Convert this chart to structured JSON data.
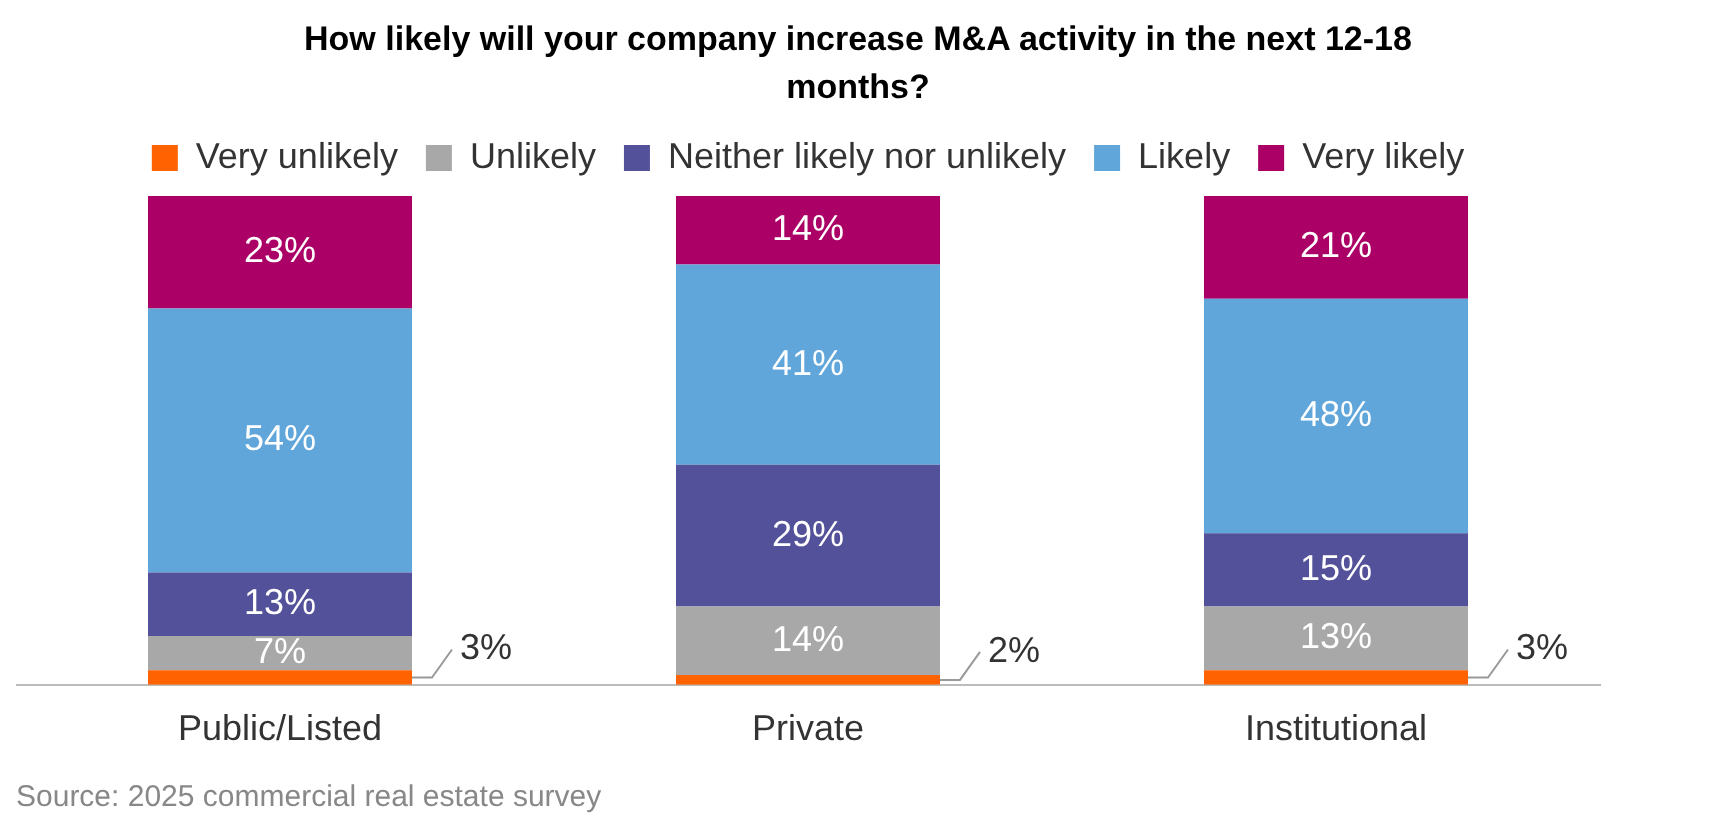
{
  "chart_data": {
    "type": "bar",
    "title": "How likely will your company increase M&A activity in the next 12-18 months?",
    "categories": [
      "Public/Listed",
      "Private",
      "Institutional"
    ],
    "stacked": true,
    "legend": "top",
    "grid": false,
    "tick_labels": "x",
    "series": [
      {
        "name": "Very unlikely",
        "color": "#ff6200",
        "values": [
          3,
          2,
          3
        ],
        "value_labels": [
          "3%",
          "2%",
          "3%"
        ]
      },
      {
        "name": "Unlikely",
        "color": "#a8a8a8",
        "values": [
          7,
          14,
          13
        ],
        "value_labels": [
          "7%",
          "14%",
          "13%"
        ]
      },
      {
        "name": "Neither likely nor unlikely",
        "color": "#525199",
        "values": [
          13,
          29,
          15
        ],
        "value_labels": [
          "13%",
          "29%",
          "15%"
        ]
      },
      {
        "name": "Likely",
        "color": "#60a6da",
        "values": [
          54,
          41,
          48
        ],
        "value_labels": [
          "54%",
          "41%",
          "48%"
        ]
      },
      {
        "name": "Very likely",
        "color": "#ab0066",
        "values": [
          23,
          14,
          21
        ],
        "value_labels": [
          "23%",
          "14%",
          "21%"
        ]
      }
    ],
    "annotations": [
      "Source: 2025 commercial real estate survey"
    ]
  }
}
